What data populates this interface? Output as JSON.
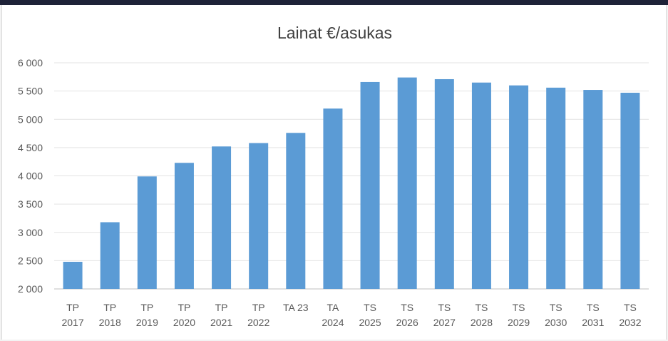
{
  "chart_data": {
    "type": "bar",
    "title": "Lainat €/asukas",
    "xlabel": "",
    "ylabel": "",
    "ylim": [
      2000,
      6000
    ],
    "yticks": [
      2000,
      2500,
      3000,
      3500,
      4000,
      4500,
      5000,
      5500,
      6000
    ],
    "ytick_labels": [
      "2 000",
      "2 500",
      "3 000",
      "3 500",
      "4 000",
      "4 500",
      "5 000",
      "5 500",
      "6 000"
    ],
    "grid": true,
    "legend": "none",
    "bar_color": "#5b9bd5",
    "categories": [
      [
        "TP",
        "2017"
      ],
      [
        "TP",
        "2018"
      ],
      [
        "TP",
        "2019"
      ],
      [
        "TP",
        "2020"
      ],
      [
        "TP",
        "2021"
      ],
      [
        "TP",
        "2022"
      ],
      [
        "TA 23",
        ""
      ],
      [
        "TA",
        "2024"
      ],
      [
        "TS",
        "2025"
      ],
      [
        "TS",
        "2026"
      ],
      [
        "TS",
        "2027"
      ],
      [
        "TS",
        "2028"
      ],
      [
        "TS",
        "2029"
      ],
      [
        "TS",
        "2030"
      ],
      [
        "TS",
        "2031"
      ],
      [
        "TS",
        "2032"
      ]
    ],
    "values": [
      2480,
      3180,
      3990,
      4230,
      4520,
      4580,
      4760,
      5190,
      5660,
      5740,
      5710,
      5650,
      5600,
      5560,
      5520,
      5470
    ]
  }
}
